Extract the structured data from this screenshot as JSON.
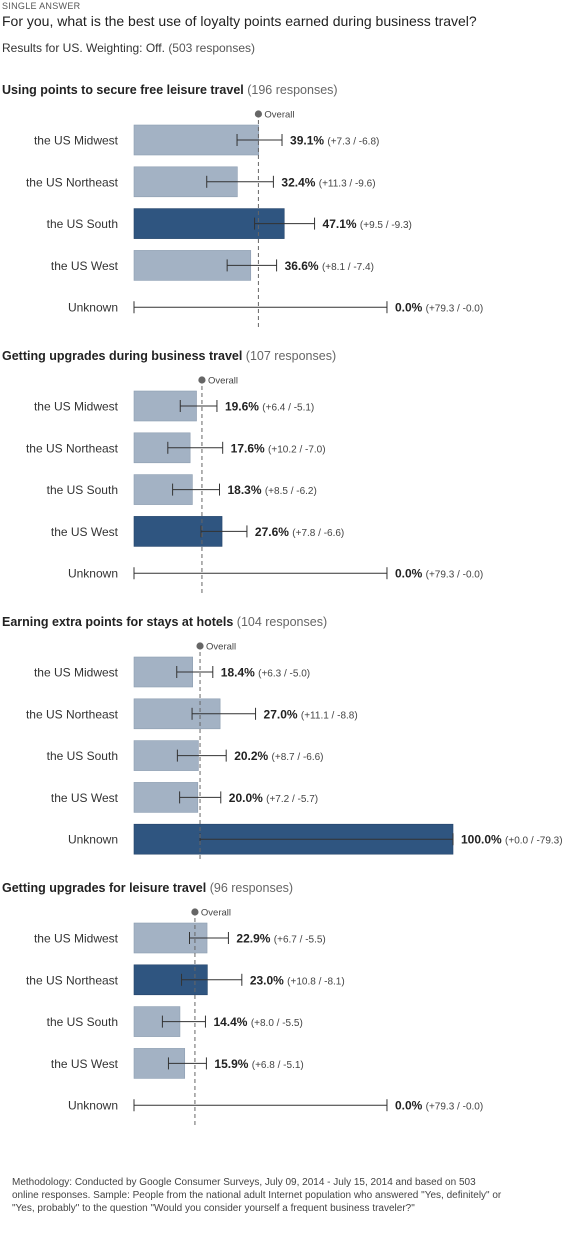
{
  "header": {
    "kicker": "SINGLE ANSWER",
    "question": "For you, what is the best use of loyalty points earned during business travel?",
    "results_prefix": "Results for US. Weighting: Off.",
    "responses": "(503 responses)"
  },
  "overall_label": "Overall",
  "colors": {
    "bar_normal": "#a3b2c4",
    "bar_highlight": "#2f5580",
    "error_bar": "#333333",
    "overall_line": "#666666"
  },
  "chart_data": [
    {
      "type": "bar",
      "title": "Using points to secure free leisure travel",
      "responses_label": "(196 responses)",
      "categories": [
        "the US Midwest",
        "the US Northeast",
        "the US South",
        "the US West",
        "Unknown"
      ],
      "values": [
        39.1,
        32.4,
        47.1,
        36.6,
        0.0
      ],
      "value_labels": [
        "39.1%",
        "32.4%",
        "47.1%",
        "36.6%",
        "0.0%"
      ],
      "error_labels": [
        "(+7.3 / -6.8)",
        "(+11.3 / -9.6)",
        "(+9.5 / -9.3)",
        "(+8.1 / -7.4)",
        "(+79.3 / -0.0)"
      ],
      "err_plus": [
        7.3,
        11.3,
        9.5,
        8.1,
        79.3
      ],
      "err_minus": [
        6.8,
        9.6,
        9.3,
        7.4,
        0.0
      ],
      "highlight_index": 2,
      "overall": 39.0,
      "xlim": [
        0,
        100
      ]
    },
    {
      "type": "bar",
      "title": "Getting upgrades during business travel",
      "responses_label": "(107 responses)",
      "categories": [
        "the US Midwest",
        "the US Northeast",
        "the US South",
        "the US West",
        "Unknown"
      ],
      "values": [
        19.6,
        17.6,
        18.3,
        27.6,
        0.0
      ],
      "value_labels": [
        "19.6%",
        "17.6%",
        "18.3%",
        "27.6%",
        "0.0%"
      ],
      "error_labels": [
        "(+6.4 / -5.1)",
        "(+10.2 / -7.0)",
        "(+8.5 / -6.2)",
        "(+7.8 / -6.6)",
        "(+79.3 / -0.0)"
      ],
      "err_plus": [
        6.4,
        10.2,
        8.5,
        7.8,
        79.3
      ],
      "err_minus": [
        5.1,
        7.0,
        6.2,
        6.6,
        0.0
      ],
      "highlight_index": 3,
      "overall": 21.3,
      "xlim": [
        0,
        100
      ]
    },
    {
      "type": "bar",
      "title": "Earning extra points for stays at hotels",
      "responses_label": "(104 responses)",
      "categories": [
        "the US Midwest",
        "the US Northeast",
        "the US South",
        "the US West",
        "Unknown"
      ],
      "values": [
        18.4,
        27.0,
        20.2,
        20.0,
        100.0
      ],
      "value_labels": [
        "18.4%",
        "27.0%",
        "20.2%",
        "20.0%",
        "100.0%"
      ],
      "error_labels": [
        "(+6.3 / -5.0)",
        "(+11.1 / -8.8)",
        "(+8.7 / -6.6)",
        "(+7.2 / -5.7)",
        "(+0.0 / -79.3)"
      ],
      "err_plus": [
        6.3,
        11.1,
        8.7,
        7.2,
        0.0
      ],
      "err_minus": [
        5.0,
        8.8,
        6.6,
        5.7,
        79.3
      ],
      "highlight_index": 4,
      "overall": 20.7,
      "xlim": [
        0,
        100
      ]
    },
    {
      "type": "bar",
      "title": "Getting upgrades for leisure travel",
      "responses_label": "(96 responses)",
      "categories": [
        "the US Midwest",
        "the US Northeast",
        "the US South",
        "the US West",
        "Unknown"
      ],
      "values": [
        22.9,
        23.0,
        14.4,
        15.9,
        0.0
      ],
      "value_labels": [
        "22.9%",
        "23.0%",
        "14.4%",
        "15.9%",
        "0.0%"
      ],
      "error_labels": [
        "(+6.7 / -5.5)",
        "(+10.8 / -8.1)",
        "(+8.0 / -5.5)",
        "(+6.8 / -5.1)",
        "(+79.3 / -0.0)"
      ],
      "err_plus": [
        6.7,
        10.8,
        8.0,
        6.8,
        79.3
      ],
      "err_minus": [
        5.5,
        8.1,
        5.5,
        5.1,
        0.0
      ],
      "highlight_index": 1,
      "overall": 19.1,
      "xlim": [
        0,
        100
      ]
    }
  ],
  "methodology": "Methodology: Conducted by Google Consumer Surveys, July 09, 2014 - July 15, 2014 and based on 503 online responses. Sample: People from the national adult Internet population who answered \"Yes, definitely\" or \"Yes, probably\" to the question \"Would you consider yourself a frequent business traveler?\""
}
